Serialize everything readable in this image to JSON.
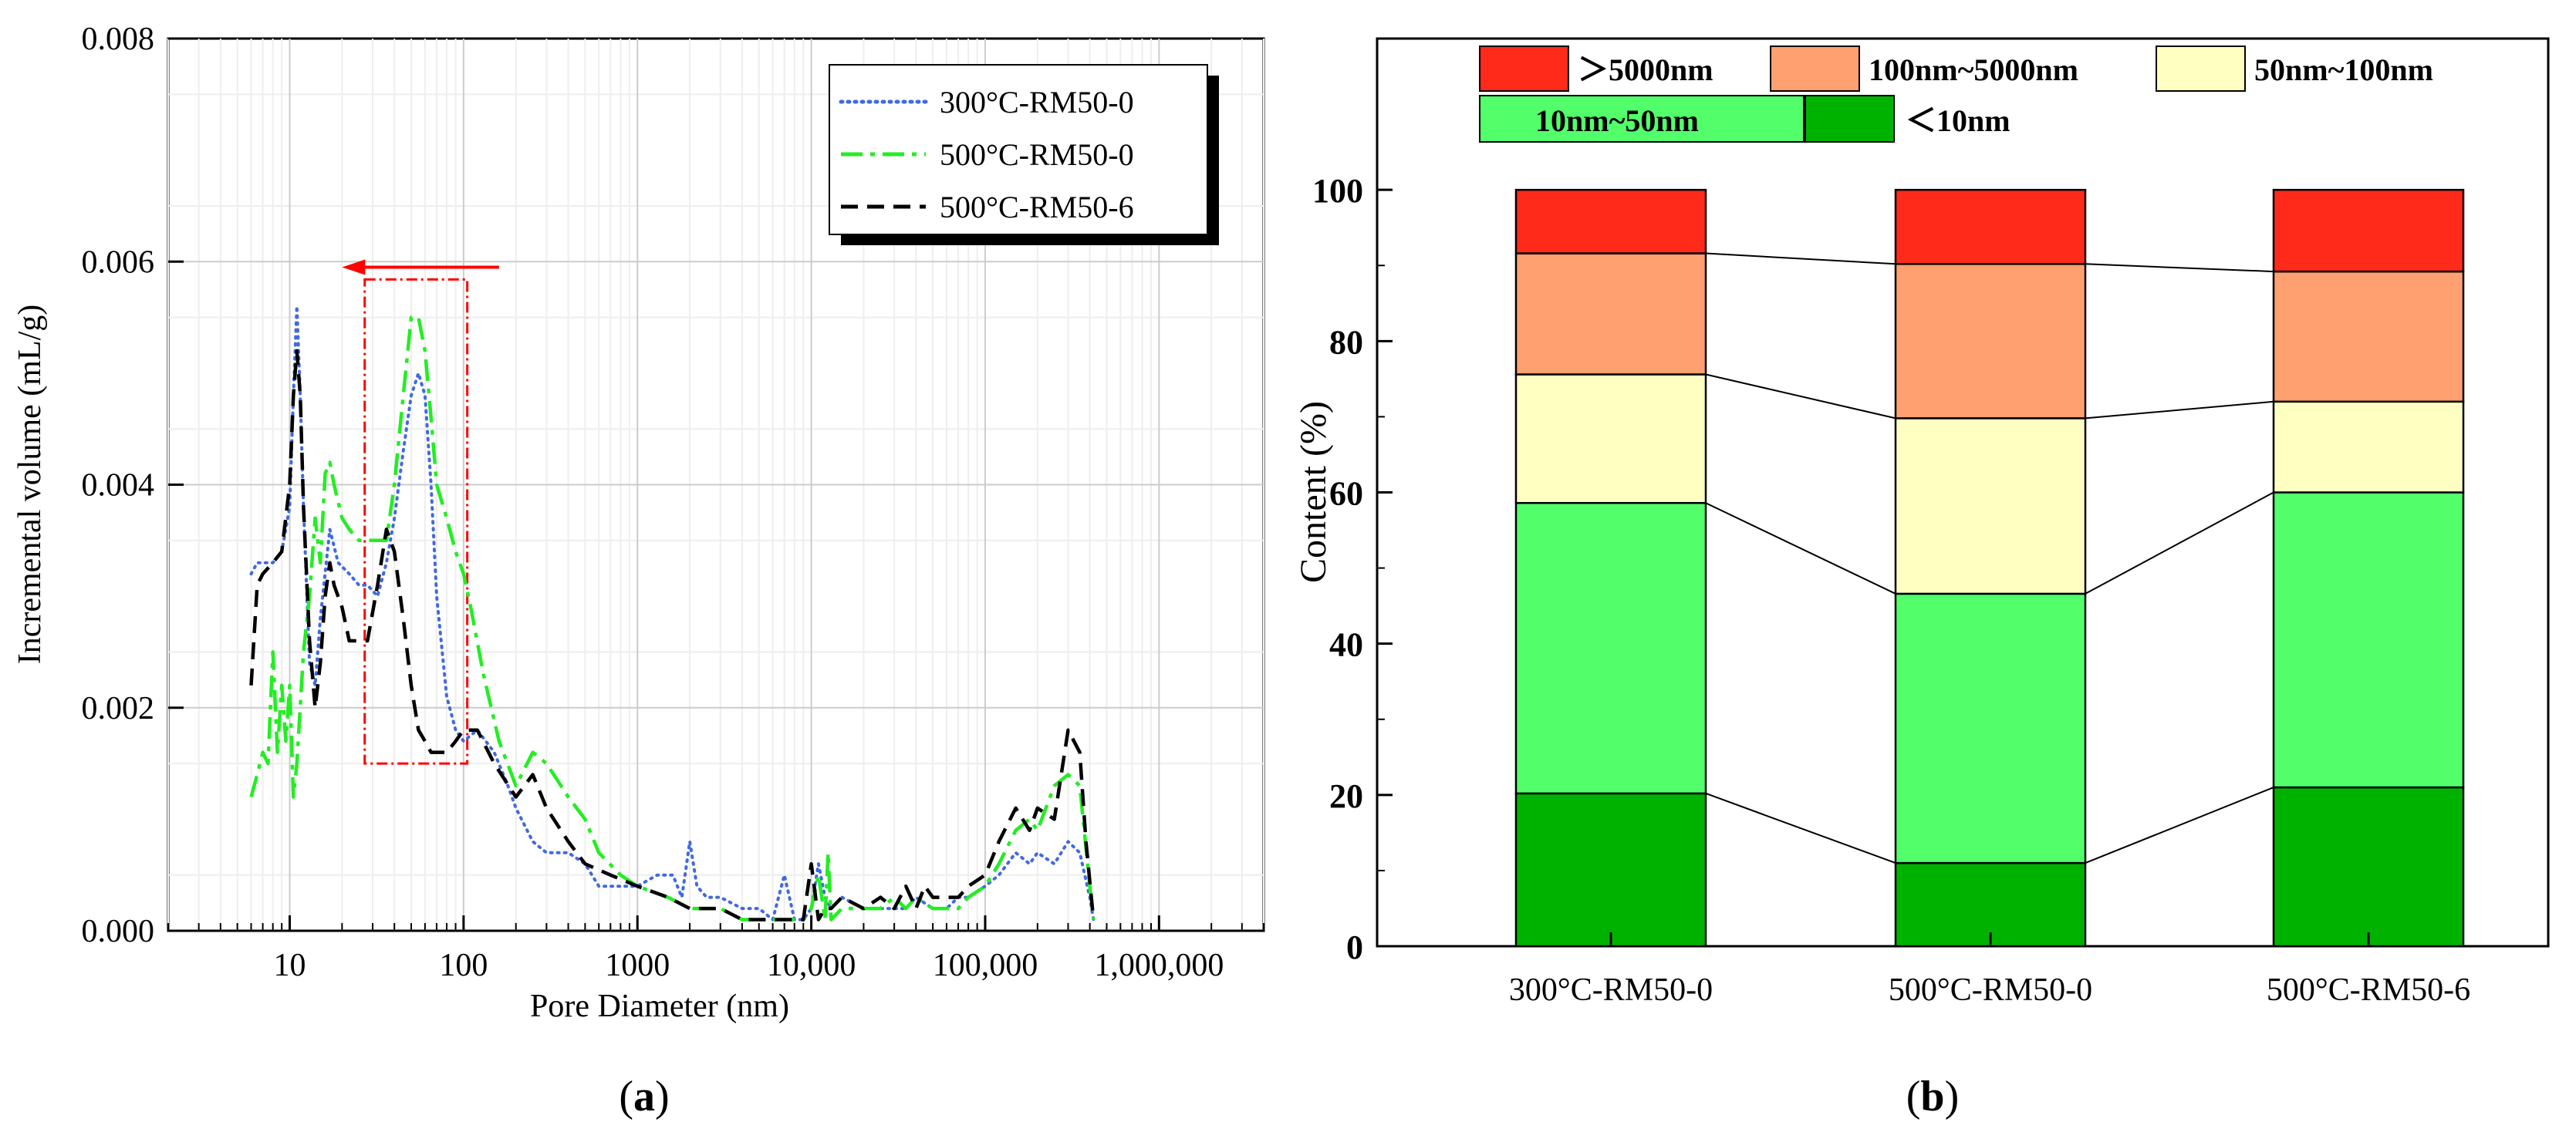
{
  "panel_labels": {
    "a": "a",
    "b": "b"
  },
  "chart_data": [
    {
      "type": "line",
      "panel": "a",
      "xscale": "log",
      "xlabel": "Pore Diameter (nm)",
      "ylabel": "Incremental volume (mL/g)",
      "xlim": [
        2,
        4000000
      ],
      "ylim": [
        0,
        0.008
      ],
      "xticks": [
        10,
        100,
        1000,
        10000,
        100000,
        1000000
      ],
      "xtick_labels": [
        "10",
        "100",
        "1000",
        "10,000",
        "100,000",
        "1,000,000"
      ],
      "yticks": [
        0,
        0.002,
        0.004,
        0.006,
        0.008
      ],
      "ytick_labels": [
        "0.000",
        "0.002",
        "0.004",
        "0.006",
        "0.008"
      ],
      "grid": true,
      "legend_position": "top-right",
      "annotation": {
        "type": "highlight-box",
        "x_range": [
          27,
          105
        ],
        "y_range": [
          0.0015,
          0.00584
        ],
        "arrow_from_x": 160,
        "arrow_to_x": 20,
        "arrow_y": 0.00595,
        "color": "#ff0000"
      },
      "series": [
        {
          "name": "300°C-RM50-0",
          "color": "#4169e1",
          "style": "dotted",
          "x": [
            6,
            6.5,
            7,
            8,
            9,
            10,
            10.5,
            11,
            11.5,
            12,
            13,
            14,
            15,
            17,
            19,
            22,
            25,
            28,
            32,
            36,
            40,
            45,
            50,
            55,
            60,
            65,
            70,
            80,
            90,
            100,
            120,
            150,
            180,
            200,
            250,
            300,
            400,
            500,
            600,
            800,
            1000,
            1300,
            1600,
            1800,
            2000,
            2200,
            2500,
            3000,
            4000,
            5000,
            6000,
            7000,
            8000,
            9000,
            10000,
            11000,
            12000,
            13000,
            15000,
            20000,
            25000,
            30000,
            35000,
            40000,
            50000,
            60000,
            70000,
            80000,
            100000,
            120000,
            150000,
            180000,
            200000,
            250000,
            300000,
            350000,
            400000,
            420000
          ],
          "y": [
            0.0032,
            0.0033,
            0.0033,
            0.0033,
            0.0034,
            0.0038,
            0.0048,
            0.0056,
            0.0048,
            0.0038,
            0.0024,
            0.0022,
            0.0028,
            0.0036,
            0.0033,
            0.0032,
            0.0031,
            0.0031,
            0.003,
            0.0033,
            0.0037,
            0.0043,
            0.0048,
            0.005,
            0.0048,
            0.004,
            0.003,
            0.0021,
            0.0018,
            0.0017,
            0.0018,
            0.0016,
            0.0013,
            0.0011,
            0.0008,
            0.0007,
            0.0007,
            0.0006,
            0.0004,
            0.0004,
            0.0004,
            0.0005,
            0.0005,
            0.0003,
            0.0008,
            0.0004,
            0.0003,
            0.0003,
            0.0002,
            0.0002,
            0.0001,
            0.0005,
            0.0001,
            0.0001,
            0.0002,
            0.0006,
            0.0003,
            0.0002,
            0.0003,
            0.0002,
            0.0002,
            0.0002,
            0.0002,
            0.0003,
            0.0002,
            0.0002,
            0.0003,
            0.0003,
            0.0004,
            0.0005,
            0.0007,
            0.0006,
            0.0007,
            0.0006,
            0.0008,
            0.0007,
            0.0003,
            0.0001
          ]
        },
        {
          "name": "500°C-RM50-0",
          "color": "#22ee22",
          "style": "dash-dot",
          "x": [
            6,
            6.5,
            7,
            7.5,
            8,
            8.5,
            9,
            9.5,
            10,
            10.5,
            11,
            12,
            13,
            14,
            15,
            16,
            17,
            18,
            20,
            22,
            25,
            28,
            32,
            36,
            40,
            45,
            50,
            55,
            60,
            65,
            70,
            80,
            90,
            100,
            110,
            130,
            160,
            200,
            250,
            300,
            400,
            500,
            600,
            800,
            1000,
            1500,
            2000,
            3000,
            4000,
            5000,
            6000,
            7000,
            8000,
            9000,
            10000,
            11000,
            12000,
            12500,
            13000,
            15000,
            20000,
            25000,
            30000,
            35000,
            40000,
            50000,
            60000,
            70000,
            80000,
            100000,
            120000,
            150000,
            180000,
            200000,
            250000,
            300000,
            350000,
            400000,
            420000
          ],
          "y": [
            0.0012,
            0.0014,
            0.0016,
            0.0015,
            0.0025,
            0.0016,
            0.0022,
            0.0017,
            0.0022,
            0.0012,
            0.0015,
            0.0025,
            0.003,
            0.0037,
            0.0033,
            0.0041,
            0.0042,
            0.004,
            0.0037,
            0.0036,
            0.0035,
            0.0035,
            0.0035,
            0.0035,
            0.004,
            0.0048,
            0.0055,
            0.0055,
            0.0052,
            0.0046,
            0.004,
            0.0037,
            0.0034,
            0.0032,
            0.0029,
            0.0023,
            0.0017,
            0.0013,
            0.0016,
            0.0015,
            0.0012,
            0.001,
            0.0007,
            0.0005,
            0.0004,
            0.0003,
            0.0002,
            0.0002,
            0.0001,
            0.0001,
            0.0001,
            0.0001,
            0.0001,
            0.0001,
            0.0002,
            0.0005,
            0.0001,
            0.0007,
            0.0001,
            0.0002,
            0.0002,
            0.0002,
            0.0003,
            0.0002,
            0.0003,
            0.0002,
            0.0002,
            0.0002,
            0.0003,
            0.0004,
            0.0006,
            0.0009,
            0.001,
            0.0009,
            0.0013,
            0.0014,
            0.0013,
            0.0004,
            0.0001
          ]
        },
        {
          "name": "500°C-RM50-6",
          "color": "#000000",
          "style": "dashed",
          "x": [
            6,
            6.5,
            7,
            8,
            9,
            10,
            10.5,
            11,
            11.5,
            12,
            13,
            14,
            15,
            16,
            17,
            18,
            20,
            22,
            25,
            28,
            32,
            36,
            40,
            45,
            50,
            55,
            60,
            65,
            70,
            80,
            90,
            100,
            120,
            150,
            200,
            250,
            300,
            400,
            500,
            700,
            1000,
            1500,
            2000,
            3000,
            4000,
            5000,
            6000,
            7000,
            8000,
            9000,
            10000,
            11000,
            12000,
            13000,
            15000,
            20000,
            25000,
            30000,
            35000,
            40000,
            45000,
            50000,
            60000,
            70000,
            80000,
            100000,
            120000,
            150000,
            180000,
            200000,
            250000,
            300000,
            350000,
            380000,
            420000
          ],
          "y": [
            0.0022,
            0.0031,
            0.0032,
            0.0033,
            0.0034,
            0.004,
            0.0048,
            0.0052,
            0.0048,
            0.0038,
            0.0026,
            0.002,
            0.0024,
            0.003,
            0.0033,
            0.0031,
            0.0029,
            0.0026,
            0.0026,
            0.0026,
            0.0031,
            0.0036,
            0.0034,
            0.0028,
            0.0022,
            0.0018,
            0.0017,
            0.0016,
            0.0016,
            0.0016,
            0.0017,
            0.0018,
            0.0018,
            0.0015,
            0.0012,
            0.0014,
            0.0011,
            0.0008,
            0.0006,
            0.0005,
            0.0004,
            0.0003,
            0.0002,
            0.0002,
            0.0001,
            0.0001,
            0.0001,
            0.0001,
            0.0001,
            0.0001,
            0.0006,
            0.0001,
            0.0002,
            0.0002,
            0.0003,
            0.0002,
            0.0003,
            0.0002,
            0.0004,
            0.0002,
            0.0004,
            0.0003,
            0.0003,
            0.0003,
            0.0004,
            0.0005,
            0.0008,
            0.0011,
            0.0009,
            0.0011,
            0.001,
            0.0018,
            0.0016,
            0.0008,
            0.0001
          ]
        }
      ]
    },
    {
      "type": "stacked-bar",
      "panel": "b",
      "ylabel": "Content (%)",
      "xlabel": "",
      "ylim": [
        0,
        120
      ],
      "yticks": [
        0,
        20,
        40,
        60,
        80,
        100
      ],
      "categories": [
        "300°C-RM50-0",
        "500°C-RM50-0",
        "500°C-RM50-6"
      ],
      "legend_position": "top",
      "series": [
        {
          "name": "＜10nm",
          "color": "#00b200",
          "values": [
            20.2,
            11.0,
            21.0
          ]
        },
        {
          "name": "10nm~50nm",
          "color": "#52ff6b",
          "values": [
            38.4,
            35.6,
            39.0
          ]
        },
        {
          "name": "50nm~100nm",
          "color": "#ffffc2",
          "values": [
            17.0,
            23.2,
            12.0
          ]
        },
        {
          "name": "100nm~5000nm",
          "color": "#ffa070",
          "values": [
            16.0,
            20.4,
            17.2
          ]
        },
        {
          "name": "＞5000nm",
          "color": "#ff2a1a",
          "values": [
            8.4,
            9.8,
            10.8
          ]
        }
      ],
      "legend_order": [
        "＞5000nm",
        "100nm~5000nm",
        "50nm~100nm",
        "10nm~50nm",
        "＜10nm"
      ]
    }
  ]
}
